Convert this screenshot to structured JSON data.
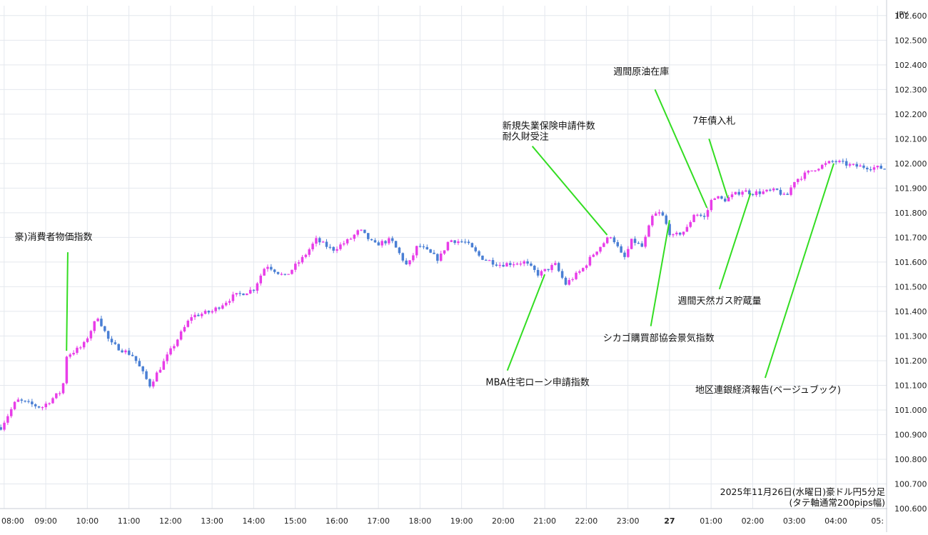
{
  "chart_data": {
    "type": "candlestick",
    "currency_label": "JPY",
    "caption": [
      "2025年11月26日(水曜日)豪ドル円5分足",
      "(タテ軸通常200pips幅)"
    ],
    "y_ticks": [
      "100.600",
      "100.700",
      "100.800",
      "100.900",
      "101.000",
      "101.100",
      "101.200",
      "101.300",
      "101.400",
      "101.500",
      "101.600",
      "101.700",
      "101.800",
      "101.900",
      "102.000",
      "102.100",
      "102.200",
      "102.300",
      "102.400",
      "102.500",
      "102.600"
    ],
    "ylim": [
      100.6,
      102.64
    ],
    "x_ticks": [
      "08:00",
      "09:00",
      "10:00",
      "11:00",
      "12:00",
      "13:00",
      "14:00",
      "15:00",
      "16:00",
      "17:00",
      "18:00",
      "19:00",
      "20:00",
      "21:00",
      "22:00",
      "23:00",
      "27",
      "01:00",
      "02:00",
      "03:00",
      "04:00",
      "05:"
    ],
    "xlim": [
      7.9,
      29.22
    ],
    "colors": {
      "up": "#e83de8",
      "down": "#4a7fd4",
      "annotation_line": "#33dd22",
      "grid": "#e4e8ee"
    },
    "candle_minutes": 5,
    "key_points": [
      {
        "t": 7.92,
        "p": 100.93
      },
      {
        "t": 8.3,
        "p": 101.04
      },
      {
        "t": 8.9,
        "p": 101.01
      },
      {
        "t": 9.4,
        "p": 101.08
      },
      {
        "t": 9.5,
        "p": 101.22
      },
      {
        "t": 9.9,
        "p": 101.26
      },
      {
        "t": 10.25,
        "p": 101.38
      },
      {
        "t": 10.55,
        "p": 101.27
      },
      {
        "t": 11.1,
        "p": 101.22
      },
      {
        "t": 11.5,
        "p": 101.1
      },
      {
        "t": 12.0,
        "p": 101.24
      },
      {
        "t": 12.5,
        "p": 101.38
      },
      {
        "t": 13.0,
        "p": 101.4
      },
      {
        "t": 13.5,
        "p": 101.46
      },
      {
        "t": 14.0,
        "p": 101.49
      },
      {
        "t": 14.3,
        "p": 101.59
      },
      {
        "t": 14.75,
        "p": 101.54
      },
      {
        "t": 15.2,
        "p": 101.62
      },
      {
        "t": 15.5,
        "p": 101.69
      },
      {
        "t": 15.9,
        "p": 101.65
      },
      {
        "t": 16.3,
        "p": 101.69
      },
      {
        "t": 16.55,
        "p": 101.73
      },
      {
        "t": 16.9,
        "p": 101.67
      },
      {
        "t": 17.3,
        "p": 101.69
      },
      {
        "t": 17.7,
        "p": 101.58
      },
      {
        "t": 17.95,
        "p": 101.67
      },
      {
        "t": 18.45,
        "p": 101.61
      },
      {
        "t": 18.7,
        "p": 101.69
      },
      {
        "t": 19.1,
        "p": 101.68
      },
      {
        "t": 19.45,
        "p": 101.62
      },
      {
        "t": 19.9,
        "p": 101.59
      },
      {
        "t": 20.5,
        "p": 101.6
      },
      {
        "t": 20.85,
        "p": 101.55
      },
      {
        "t": 21.25,
        "p": 101.59
      },
      {
        "t": 21.5,
        "p": 101.51
      },
      {
        "t": 21.9,
        "p": 101.57
      },
      {
        "t": 22.2,
        "p": 101.64
      },
      {
        "t": 22.6,
        "p": 101.71
      },
      {
        "t": 22.9,
        "p": 101.61
      },
      {
        "t": 23.1,
        "p": 101.69
      },
      {
        "t": 23.35,
        "p": 101.66
      },
      {
        "t": 23.6,
        "p": 101.79
      },
      {
        "t": 23.8,
        "p": 101.8
      },
      {
        "t": 24.05,
        "p": 101.7
      },
      {
        "t": 24.4,
        "p": 101.73
      },
      {
        "t": 24.6,
        "p": 101.8
      },
      {
        "t": 24.85,
        "p": 101.78
      },
      {
        "t": 25.05,
        "p": 101.87
      },
      {
        "t": 25.3,
        "p": 101.85
      },
      {
        "t": 25.75,
        "p": 101.89
      },
      {
        "t": 26.0,
        "p": 101.88
      },
      {
        "t": 26.6,
        "p": 101.89
      },
      {
        "t": 26.8,
        "p": 101.86
      },
      {
        "t": 27.0,
        "p": 101.93
      },
      {
        "t": 27.5,
        "p": 101.98
      },
      {
        "t": 27.95,
        "p": 102.01
      },
      {
        "t": 28.4,
        "p": 101.99
      },
      {
        "t": 29.2,
        "p": 101.98
      }
    ],
    "annotations": [
      {
        "text": [
          "豪)消費者物価指数"
        ],
        "label_t": 8.25,
        "label_p": 101.69,
        "line_from": [
          9.53,
          101.64
        ],
        "line_to": [
          9.5,
          101.24
        ]
      },
      {
        "text": [
          "MBA住宅ローン申請指数"
        ],
        "label_t": 19.58,
        "label_p": 101.1,
        "line_from": [
          20.1,
          101.16
        ],
        "line_to": [
          21.0,
          101.55
        ]
      },
      {
        "text": [
          "新規失業保険申請件数",
          "耐久財受注"
        ],
        "label_t": 19.98,
        "label_p": 102.14,
        "line_from": [
          20.7,
          102.07
        ],
        "line_to": [
          22.5,
          101.71
        ]
      },
      {
        "text": [
          "シカゴ購買部協会景気指数"
        ],
        "label_t": 22.4,
        "label_p": 101.28,
        "line_from": [
          23.55,
          101.34
        ],
        "line_to": [
          24.0,
          101.77
        ]
      },
      {
        "text": [
          "週間原油在庫"
        ],
        "label_t": 22.65,
        "label_p": 102.36,
        "line_from": [
          23.65,
          102.3
        ],
        "line_to": [
          24.9,
          101.82
        ]
      },
      {
        "text": [
          "7年債入札"
        ],
        "label_t": 24.55,
        "label_p": 102.16,
        "line_from": [
          24.95,
          102.1
        ],
        "line_to": [
          25.4,
          101.86
        ]
      },
      {
        "text": [
          "週間天然ガス貯蔵量"
        ],
        "label_t": 24.2,
        "label_p": 101.43,
        "line_from": [
          25.2,
          101.49
        ],
        "line_to": [
          25.95,
          101.88
        ]
      },
      {
        "text": [
          "地区連銀経済報告(ベージュブック)"
        ],
        "label_t": 24.62,
        "label_p": 101.07,
        "line_from": [
          26.3,
          101.13
        ],
        "line_to": [
          27.95,
          102.0
        ]
      }
    ]
  }
}
